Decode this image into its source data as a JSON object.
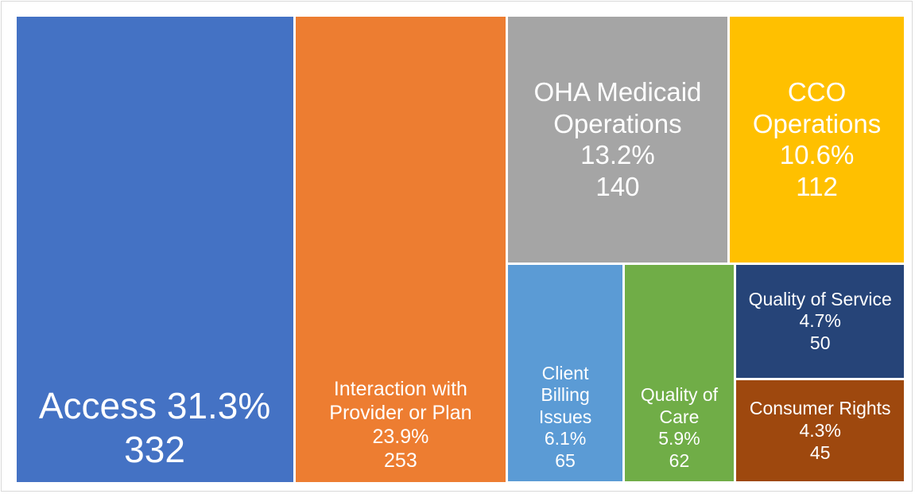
{
  "chart_data": {
    "type": "treemap",
    "categories": [
      "Access",
      "Interaction with Provider or Plan",
      "OHA Medicaid Operations",
      "CCO Operations",
      "Client Billing Issues",
      "Quality of Care",
      "Quality of Service",
      "Consumer Rights"
    ],
    "values": [
      332,
      253,
      140,
      112,
      65,
      62,
      50,
      45
    ],
    "percents": [
      31.3,
      23.9,
      13.2,
      10.6,
      6.1,
      5.9,
      4.7,
      4.3
    ],
    "percent_labels": [
      "31.3%",
      "23.9%",
      "13.2%",
      "10.6%",
      "6.1%",
      "5.9%",
      "4.7%",
      "4.3%"
    ],
    "colors": [
      "#4472c4",
      "#ed7d31",
      "#a5a5a5",
      "#ffc000",
      "#5b9bd5",
      "#70ad47",
      "#264478",
      "#9e480e"
    ]
  }
}
